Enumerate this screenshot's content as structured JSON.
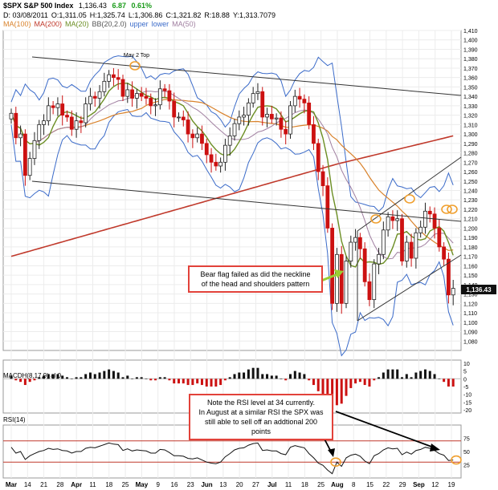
{
  "header": {
    "symbol": "$SPX S&P 500 Index",
    "last": "1,136.43",
    "change": "6.87",
    "change_pct": "0.61%",
    "line2": [
      "D: 03/08/2011",
      "O:1,311.05",
      "H:1,325.74",
      "L:1,306.86",
      "C:1,321.82",
      "R:18.88",
      "Y:1,313.7079"
    ],
    "legend": [
      {
        "label": "MA(100)",
        "color": "#d9822b"
      },
      {
        "label": "MA(200)",
        "color": "#c0392b"
      },
      {
        "label": "MA(20)",
        "color": "#6b8e23"
      },
      {
        "label": "BB(20,2.0)",
        "color": "#555555"
      },
      {
        "label": "upper",
        "color": "#3b6bc9"
      },
      {
        "label": "lower",
        "color": "#3b6bc9"
      },
      {
        "label": "MA(50)",
        "color": "#a07fa0"
      }
    ]
  },
  "annotations": {
    "may_top": "May 2 Top",
    "bear_flag": [
      "Bear flag failed as did the neckline",
      "of the head and shoulders pattern"
    ],
    "rsi_note": [
      "Note the RSI level at 34 currently.",
      "In August at a similar RSI the SPX was",
      "still able to sell off an addtional 200 points"
    ]
  },
  "panels": {
    "macd_title": "MACDH(8,17,9) al 0",
    "rsi_title": "RSI(14)"
  },
  "price_tag": "1,136.43",
  "colors": {
    "up": "#222222",
    "down": "#cc1111",
    "annot": "#e2423a",
    "callout": "#f0a030",
    "trendline": "#333333"
  },
  "chart_data": {
    "type": "candlestick",
    "price_axis": {
      "min": 1070,
      "max": 1410,
      "ticks": [
        1080,
        1090,
        1100,
        1110,
        1120,
        1130,
        1140,
        1150,
        1160,
        1170,
        1180,
        1190,
        1200,
        1210,
        1220,
        1230,
        1240,
        1250,
        1260,
        1270,
        1280,
        1290,
        1300,
        1310,
        1320,
        1330,
        1340,
        1350,
        1360,
        1370,
        1380,
        1390,
        1400,
        1410
      ]
    },
    "macd_axis": {
      "ticks": [
        10,
        5,
        0,
        -5,
        -10,
        -15,
        -20
      ]
    },
    "rsi_axis": {
      "ticks": [
        75,
        50,
        25
      ],
      "upper": 70,
      "lower": 30
    },
    "x_labels": [
      "Mar",
      "14",
      "21",
      "28",
      "Apr",
      "11",
      "18",
      "25",
      "May",
      "9",
      "16",
      "23",
      "Jun",
      "13",
      "20",
      "27",
      "Jul",
      "11",
      "18",
      "25",
      "Aug",
      "8",
      "15",
      "22",
      "29",
      "Sep",
      "12",
      "19"
    ],
    "closes": [
      1322,
      1296,
      1300,
      1256,
      1274,
      1293,
      1310,
      1314,
      1330,
      1328,
      1332,
      1320,
      1318,
      1305,
      1314,
      1312,
      1332,
      1340,
      1338,
      1345,
      1356,
      1363,
      1360,
      1358,
      1340,
      1347,
      1338,
      1343,
      1340,
      1338,
      1330,
      1331,
      1348,
      1346,
      1335,
      1318,
      1318,
      1315,
      1300,
      1296,
      1300,
      1290,
      1278,
      1270,
      1266,
      1270,
      1288,
      1298,
      1311,
      1318,
      1320,
      1333,
      1343,
      1345,
      1318,
      1321,
      1316,
      1317,
      1305,
      1300,
      1330,
      1340,
      1337,
      1333,
      1310,
      1290,
      1260,
      1245,
      1200,
      1120,
      1172,
      1120,
      1165,
      1185,
      1190,
      1178,
      1143,
      1124,
      1162,
      1172,
      1198,
      1212,
      1208,
      1210,
      1165,
      1185,
      1168,
      1195,
      1201,
      1218,
      1215,
      1200,
      1180,
      1167,
      1129,
      1136
    ],
    "rsi": [
      58,
      47,
      50,
      35,
      42,
      46,
      50,
      52,
      56,
      54,
      55,
      52,
      51,
      47,
      50,
      50,
      56,
      58,
      57,
      60,
      63,
      66,
      64,
      63,
      52,
      55,
      51,
      53,
      52,
      51,
      47,
      47,
      54,
      53,
      48,
      42,
      42,
      41,
      37,
      36,
      38,
      34,
      30,
      28,
      27,
      30,
      40,
      46,
      53,
      56,
      57,
      62,
      65,
      66,
      52,
      53,
      51,
      51,
      46,
      44,
      58,
      61,
      59,
      57,
      46,
      38,
      28,
      24,
      15,
      8,
      30,
      22,
      38,
      43,
      45,
      41,
      32,
      27,
      42,
      46,
      53,
      57,
      55,
      56,
      44,
      49,
      45,
      52,
      54,
      58,
      56,
      52,
      46,
      43,
      33,
      34
    ],
    "macd_hist": [
      2,
      -1,
      -2,
      -4,
      -2,
      -1,
      1,
      2,
      3,
      3,
      3,
      2,
      1,
      0,
      1,
      1,
      3,
      4,
      3,
      4,
      5,
      6,
      5,
      4,
      1,
      2,
      0,
      1,
      1,
      0,
      -1,
      -1,
      1,
      1,
      -1,
      -3,
      -3,
      -3,
      -4,
      -4,
      -3,
      -4,
      -5,
      -5,
      -5,
      -4,
      -1,
      1,
      3,
      4,
      4,
      6,
      7,
      7,
      3,
      3,
      2,
      2,
      0,
      -1,
      3,
      5,
      4,
      3,
      -1,
      -4,
      -8,
      -10,
      -15,
      -20,
      -17,
      -16,
      -11,
      -6,
      -3,
      -2,
      -4,
      -5,
      -1,
      1,
      4,
      6,
      6,
      6,
      1,
      3,
      1,
      4,
      5,
      6,
      5,
      3,
      0,
      -2,
      -5,
      -5
    ]
  }
}
